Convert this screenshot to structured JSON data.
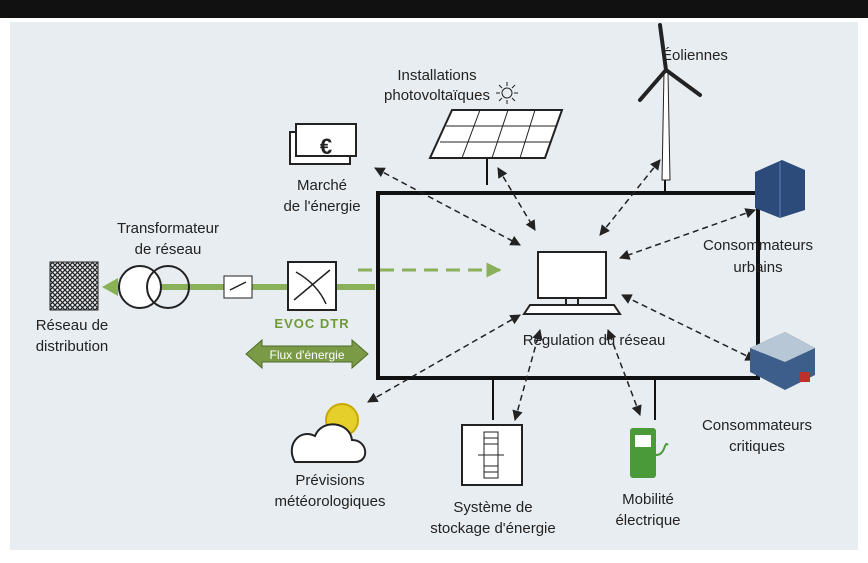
{
  "nodes": [
    {
      "id": "pv",
      "lines": [
        "Installations",
        "photovoltaïques"
      ]
    },
    {
      "id": "wind",
      "lines": [
        "Éoliennes"
      ]
    },
    {
      "id": "market",
      "lines": [
        "Marché",
        "de l'énergie"
      ]
    },
    {
      "id": "transformer",
      "lines": [
        "Transformateur",
        "de réseau"
      ]
    },
    {
      "id": "grid",
      "lines": [
        "Réseau de",
        "distribution"
      ]
    },
    {
      "id": "evoc",
      "lines": [
        "EVOC DTR"
      ]
    },
    {
      "id": "flow",
      "lines": [
        "Flux d'énergie"
      ]
    },
    {
      "id": "urban",
      "lines": [
        "Consommateurs",
        "urbains"
      ]
    },
    {
      "id": "control",
      "lines": [
        "Régulation du réseau"
      ]
    },
    {
      "id": "critical",
      "lines": [
        "Consommateurs",
        "critiques"
      ]
    },
    {
      "id": "weather",
      "lines": [
        "Prévisions",
        "météorologiques"
      ]
    },
    {
      "id": "storage",
      "lines": [
        "Système de",
        "stockage d'énergie"
      ]
    },
    {
      "id": "ev",
      "lines": [
        "Mobilité",
        "électrique"
      ]
    }
  ]
}
